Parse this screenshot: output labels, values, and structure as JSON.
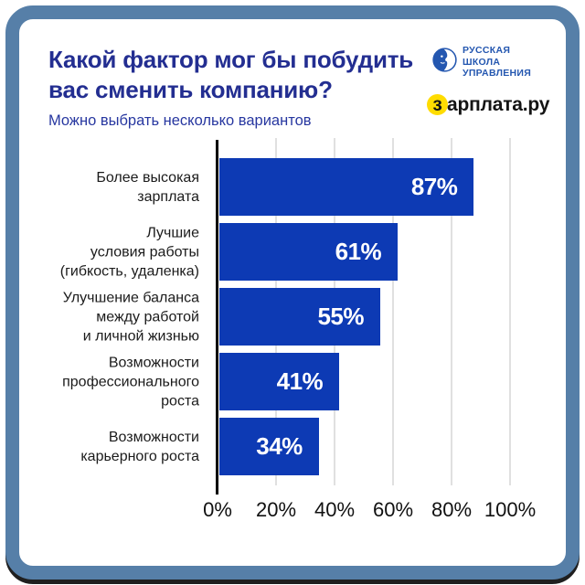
{
  "header": {
    "title_line1": "Какой фактор мог бы побудить",
    "title_line2": "вас сменить компанию?",
    "subtitle": "Можно выбрать несколько вариантов"
  },
  "logos": {
    "rsu_line1": "РУССКАЯ",
    "rsu_line2": "ШКОЛА",
    "rsu_line3": "УПРАВЛЕНИЯ",
    "zarplata_highlight": "з",
    "zarplata_rest": "арплата.ру"
  },
  "chart_data": {
    "type": "bar",
    "orientation": "horizontal",
    "title": "Какой фактор мог бы побудить вас сменить компанию?",
    "subtitle": "Можно выбрать несколько вариантов",
    "categories": [
      "Более высокая зарплата",
      "Лучшие условия работы (гибкость, удаленка)",
      "Улучшение баланса между работой и личной жизнью",
      "Возможности профессионального роста",
      "Возможности карьерного роста"
    ],
    "category_lines": [
      [
        "Более высокая",
        "зарплата"
      ],
      [
        "Лучшие",
        "условия работы",
        "(гибкость, удаленка)"
      ],
      [
        "Улучшение баланса",
        "между работой",
        "и личной жизнью"
      ],
      [
        "Возможности",
        "профессионального",
        "роста"
      ],
      [
        "Возможности",
        "карьерного роста"
      ]
    ],
    "values": [
      87,
      61,
      55,
      41,
      34
    ],
    "value_labels": [
      "87%",
      "61%",
      "55%",
      "41%",
      "34%"
    ],
    "x_ticks": [
      "0%",
      "20%",
      "40%",
      "60%",
      "80%",
      "100%"
    ],
    "xlim": [
      0,
      100
    ],
    "unit": "%",
    "grid": true,
    "legend": false,
    "bar_color": "#0d3ab4"
  },
  "colors": {
    "frame_border": "#567fa8",
    "frame_shadow": "#0c0c0c",
    "card_background": "#ffffff",
    "bar": "#0d3ab4",
    "bar_value_text": "#ffffff",
    "title": "#232e91",
    "subtitle": "#2737a0",
    "category_label": "#1b1b1b",
    "tick_label": "#111111",
    "gridline": "#e0e0e0",
    "axis_line": "#000000",
    "rsu_blue": "#2457b0",
    "zarplata_yellow": "#ffdc00",
    "zarplata_text": "#141414"
  }
}
